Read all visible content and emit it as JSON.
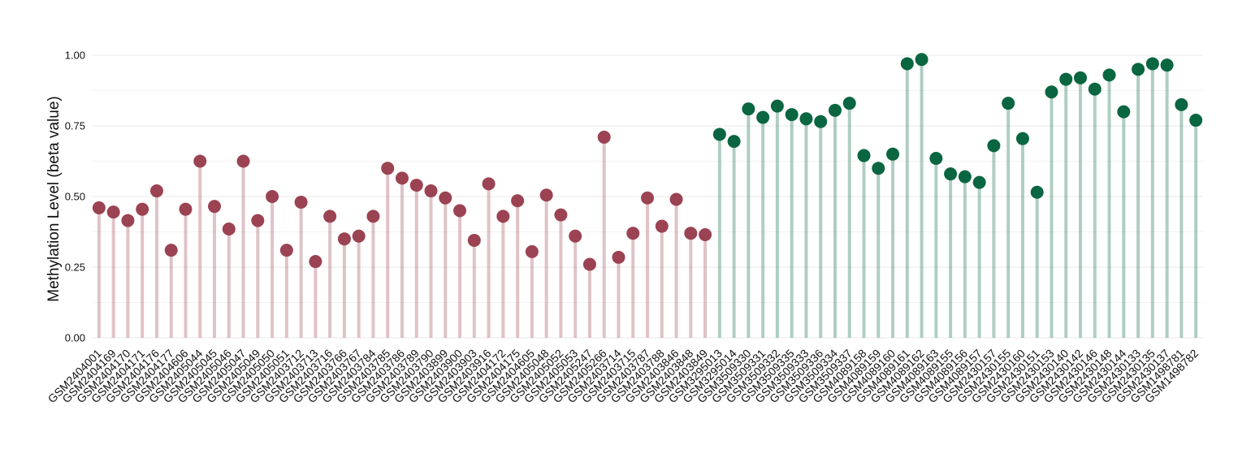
{
  "chart_data": {
    "type": "lollipop",
    "y_label": "Methylation Level (beta value)",
    "categories": [
      "GSM2404001",
      "GSM2404169",
      "GSM2404170",
      "GSM2404171",
      "GSM2404176",
      "GSM2404177",
      "GSM2404606",
      "GSM2405044",
      "GSM2405045",
      "GSM2405046",
      "GSM2405047",
      "GSM2405049",
      "GSM2405050",
      "GSM2405051",
      "GSM2403712",
      "GSM2403713",
      "GSM2403716",
      "GSM2403766",
      "GSM2403767",
      "GSM2403784",
      "GSM2403785",
      "GSM2403786",
      "GSM2403789",
      "GSM2403790",
      "GSM2403899",
      "GSM2403900",
      "GSM2403903",
      "GSM2403916",
      "GSM2404172",
      "GSM2404175",
      "GSM2404605",
      "GSM2405048",
      "GSM2405052",
      "GSM2405053",
      "GSM2405247",
      "GSM2405266",
      "GSM2403714",
      "GSM2403715",
      "GSM2403787",
      "GSM2403788",
      "GSM2403846",
      "GSM2403848",
      "GSM2403849",
      "GSM3295013",
      "GSM3295014",
      "GSM3509330",
      "GSM3509331",
      "GSM3509332",
      "GSM3509335",
      "GSM3509333",
      "GSM3509336",
      "GSM3509334",
      "GSM3509337",
      "GSM4089158",
      "GSM4089159",
      "GSM4089160",
      "GSM4089161",
      "GSM4089162",
      "GSM4089163",
      "GSM4089155",
      "GSM4089156",
      "GSM4089157",
      "GSM2430157",
      "GSM2430155",
      "GSM2430160",
      "GSM2430151",
      "GSM2430153",
      "GSM2430140",
      "GSM2430142",
      "GSM2430146",
      "GSM2430148",
      "GSM2430144",
      "GSM2430133",
      "GSM2430135",
      "GSM2430137",
      "GSM1498781",
      "GSM1498782"
    ],
    "values": [
      0.46,
      0.445,
      0.415,
      0.455,
      0.52,
      0.31,
      0.455,
      0.625,
      0.465,
      0.385,
      0.625,
      0.415,
      0.5,
      0.31,
      0.48,
      0.27,
      0.43,
      0.35,
      0.36,
      0.43,
      0.6,
      0.565,
      0.54,
      0.52,
      0.495,
      0.45,
      0.345,
      0.545,
      0.43,
      0.485,
      0.305,
      0.505,
      0.435,
      0.36,
      0.26,
      0.71,
      0.285,
      0.37,
      0.495,
      0.395,
      0.49,
      0.37,
      0.365,
      0.72,
      0.695,
      0.81,
      0.78,
      0.82,
      0.79,
      0.775,
      0.765,
      0.805,
      0.83,
      0.645,
      0.6,
      0.65,
      0.97,
      0.985,
      0.635,
      0.58,
      0.57,
      0.55,
      0.68,
      0.83,
      0.705,
      0.515,
      0.87,
      0.915,
      0.92,
      0.88,
      0.93,
      0.8,
      0.95,
      0.97,
      0.965,
      0.825,
      0.77
    ],
    "colors": [
      "#9b4352",
      "#9b4352",
      "#9b4352",
      "#9b4352",
      "#9b4352",
      "#9b4352",
      "#9b4352",
      "#9b4352",
      "#9b4352",
      "#9b4352",
      "#9b4352",
      "#9b4352",
      "#9b4352",
      "#9b4352",
      "#9b4352",
      "#9b4352",
      "#9b4352",
      "#9b4352",
      "#9b4352",
      "#9b4352",
      "#9b4352",
      "#9b4352",
      "#9b4352",
      "#9b4352",
      "#9b4352",
      "#9b4352",
      "#9b4352",
      "#9b4352",
      "#9b4352",
      "#9b4352",
      "#9b4352",
      "#9b4352",
      "#9b4352",
      "#9b4352",
      "#9b4352",
      "#9b4352",
      "#9b4352",
      "#9b4352",
      "#9b4352",
      "#9b4352",
      "#9b4352",
      "#9b4352",
      "#9b4352",
      "#0a6640",
      "#0a6640",
      "#0a6640",
      "#0a6640",
      "#0a6640",
      "#0a6640",
      "#0a6640",
      "#0a6640",
      "#0a6640",
      "#0a6640",
      "#0a6640",
      "#0a6640",
      "#0a6640",
      "#0a6640",
      "#0a6640",
      "#0a6640",
      "#0a6640",
      "#0a6640",
      "#0a6640",
      "#0a6640",
      "#0a6640",
      "#0a6640",
      "#0a6640",
      "#0a6640",
      "#0a6640",
      "#0a6640",
      "#0a6640",
      "#0a6640",
      "#0a6640",
      "#0a6640",
      "#0a6640",
      "#0a6640",
      "#0a6640",
      "#0a6640"
    ],
    "ylim": [
      0,
      1.05
    ],
    "yticks": [
      {
        "value": 0,
        "label": "0.00"
      },
      {
        "value": 0.25,
        "label": "0.25"
      },
      {
        "value": 0.5,
        "label": "0.50"
      },
      {
        "value": 0.75,
        "label": "0.75"
      },
      {
        "value": 1,
        "label": "1.00"
      }
    ],
    "grid": true,
    "minor_grid": true
  }
}
